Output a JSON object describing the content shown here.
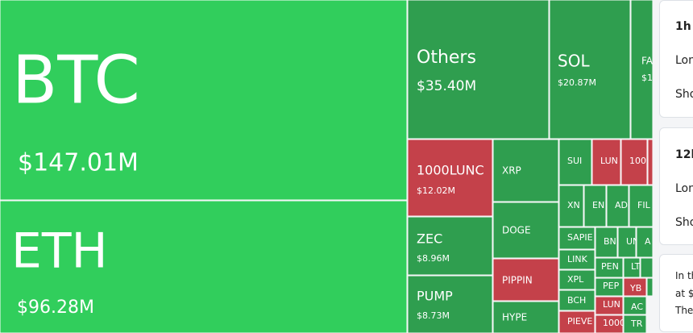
{
  "tiles": [
    {
      "label": "BTC",
      "value": "$147.01M",
      "color": "#31ce5c"
    },
    {
      "label": "ETH",
      "value": "$96.28M",
      "color": "#31ce5c"
    },
    {
      "label": "Others",
      "value": "$35.40M",
      "color": "#2f9e4f"
    },
    {
      "label": "SOL",
      "value": "$20.87M",
      "color": "#2f9e4f"
    },
    {
      "label": "FA",
      "value": "$1",
      "color": "#2f9e4f"
    },
    {
      "label": "1000LUNC",
      "value": "$12.02M",
      "color": "#c4414a"
    },
    {
      "label": "XRP",
      "color": "#2f9e4f"
    },
    {
      "label": "SUI",
      "color": "#2f9e4f"
    },
    {
      "label": "LUN",
      "color": "#c4414a"
    },
    {
      "label": "100",
      "color": "#c4414a"
    },
    {
      "color": "#c4414a"
    },
    {
      "label": "DOGE",
      "color": "#2f9e4f"
    },
    {
      "label": "ZEC",
      "value": "$8.96M",
      "color": "#2f9e4f"
    },
    {
      "label": "PUMP",
      "value": "$8.73M",
      "color": "#2f9e4f"
    },
    {
      "label": "PIPPIN",
      "color": "#c4414a"
    },
    {
      "label": "HYPE",
      "color": "#2f9e4f"
    },
    {
      "label": "XN",
      "color": "#2f9e4f"
    },
    {
      "label": "EN",
      "color": "#2f9e4f"
    },
    {
      "label": "AD",
      "color": "#2f9e4f"
    },
    {
      "label": "FIL",
      "color": "#2f9e4f"
    },
    {
      "label": "SAPIE",
      "color": "#2f9e4f"
    },
    {
      "label": "BN",
      "color": "#2f9e4f"
    },
    {
      "label": "UN",
      "color": "#2f9e4f"
    },
    {
      "label": "A",
      "color": "#2f9e4f"
    },
    {
      "label": "LINK",
      "color": "#2f9e4f"
    },
    {
      "label": "XPL",
      "color": "#2f9e4f"
    },
    {
      "label": "BCH",
      "color": "#2f9e4f"
    },
    {
      "label": "PIEVE",
      "color": "#c4414a"
    },
    {
      "label": "PEN",
      "color": "#2f9e4f"
    },
    {
      "label": "LT",
      "color": "#2f9e4f"
    },
    {
      "color": "#2f9e4f"
    },
    {
      "label": "PEP",
      "color": "#2f9e4f"
    },
    {
      "label": "YB",
      "color": "#c4414a"
    },
    {
      "color": "#2f9e4f"
    },
    {
      "label": "LUN",
      "color": "#c4414a"
    },
    {
      "label": "AC",
      "color": "#2f9e4f"
    },
    {
      "label": "1000",
      "color": "#c4414a"
    },
    {
      "label": "TR",
      "color": "#2f9e4f"
    }
  ],
  "cards": [
    {
      "title": "1h",
      "lines": [
        "Lon",
        "Sho"
      ]
    },
    {
      "title": "12h",
      "lines": [
        "Lon",
        "Sho"
      ]
    },
    {
      "lines": [
        "In th",
        "at $",
        "The"
      ]
    }
  ]
}
